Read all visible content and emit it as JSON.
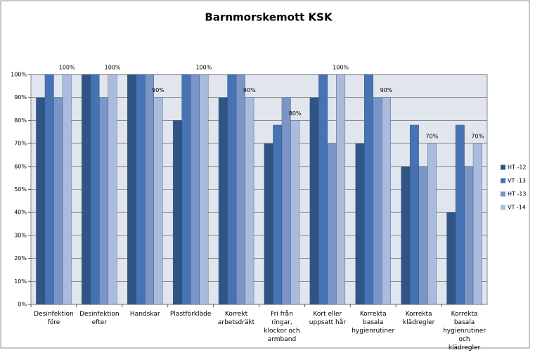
{
  "chart_data": {
    "type": "bar",
    "title": "Barnmorskemott  KSK",
    "categories": [
      "Desinfektion före",
      "Desinfektion efter",
      "Handskar",
      "Plastförkläde",
      "Korrekt arbetsdräkt",
      "Fri från ringar, klockor och armband",
      "Kort eller uppsatt hår",
      "Korrekta basala hygienrutiner",
      "Korrekta klädregler",
      "Korrekta basala hygienrutiner och klädregler"
    ],
    "series": [
      {
        "name": "HT -12",
        "color": "#2f5587",
        "values": [
          90,
          100,
          100,
          80,
          90,
          70,
          90,
          70,
          60,
          40
        ]
      },
      {
        "name": "VT -13",
        "color": "#4673b4",
        "values": [
          100,
          100,
          100,
          100,
          100,
          78,
          100,
          100,
          78,
          78
        ]
      },
      {
        "name": "HT -13",
        "color": "#7b95c8",
        "values": [
          90,
          90,
          100,
          100,
          100,
          90,
          70,
          90,
          60,
          60
        ]
      },
      {
        "name": "VT -14",
        "color": "#aabbde",
        "values": [
          100,
          100,
          90,
          100,
          90,
          80,
          100,
          90,
          70,
          70
        ],
        "value_labels": [
          "100%",
          "100%",
          "90%",
          "100%",
          "90%",
          "80%",
          "100%",
          "90%",
          "70%",
          "70%"
        ]
      }
    ],
    "ylim": [
      0,
      100
    ],
    "yticks": [
      {
        "value": 0,
        "label": "0%"
      },
      {
        "value": 10,
        "label": "10%"
      },
      {
        "value": 20,
        "label": "20%"
      },
      {
        "value": 30,
        "label": "30%"
      },
      {
        "value": 40,
        "label": "40%"
      },
      {
        "value": 50,
        "label": "50%"
      },
      {
        "value": 60,
        "label": "60%"
      },
      {
        "value": 70,
        "label": "70%"
      },
      {
        "value": 80,
        "label": "80%"
      },
      {
        "value": 90,
        "label": "90%"
      },
      {
        "value": 100,
        "label": "100%"
      }
    ],
    "grid": true,
    "legend": "right"
  }
}
